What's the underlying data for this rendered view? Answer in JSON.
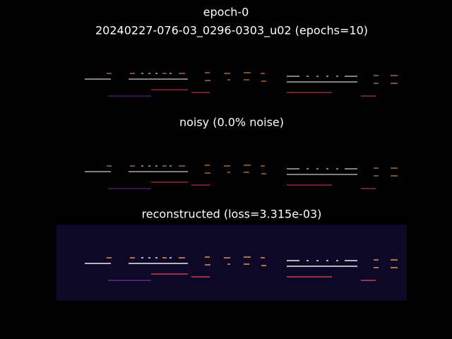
{
  "figure": {
    "title": "epoch-0",
    "subtitle": "20240227-076-03_0296-0303_u02 (epochs=10)"
  },
  "panels": [
    {
      "title": "noisy (0.0% noise)"
    },
    {
      "title": "reconstructed (loss=3.315e-03)"
    }
  ]
}
